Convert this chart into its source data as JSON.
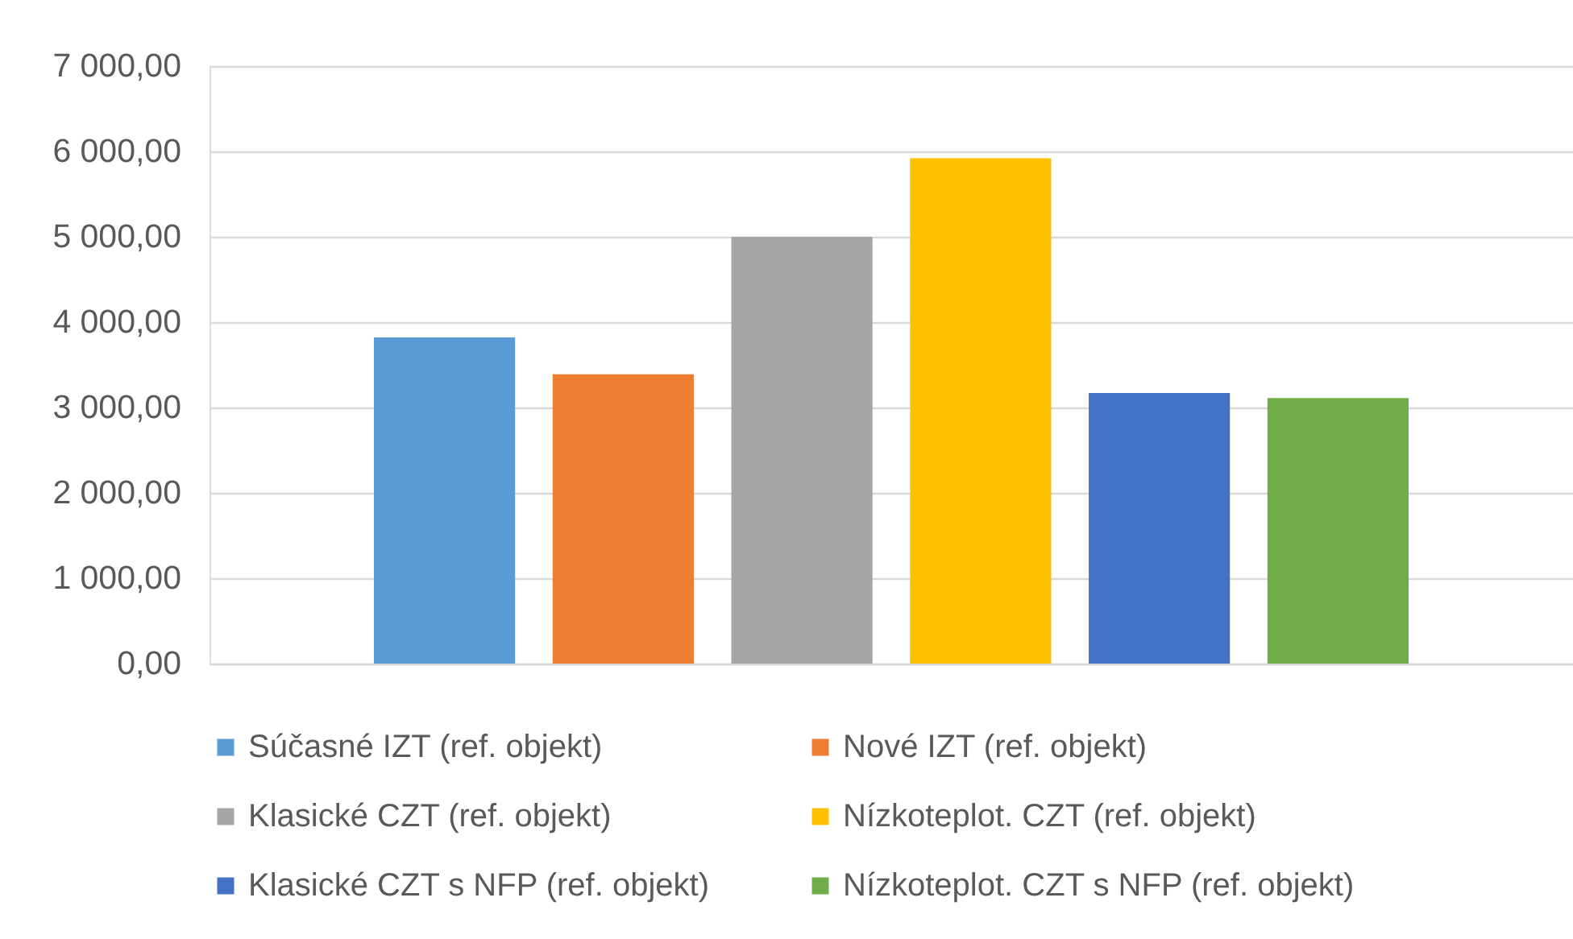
{
  "chart_data": {
    "type": "bar",
    "categories": [
      null
    ],
    "series": [
      {
        "name": "Súčasné IZT (ref. objekt)",
        "color": "#5b9bd5",
        "values": [
          3820
        ]
      },
      {
        "name": "Nové IZT (ref. objekt)",
        "color": "#ed7d31",
        "values": [
          3390
        ]
      },
      {
        "name": "Klasické CZT (ref. objekt)",
        "color": "#a5a5a5",
        "values": [
          5000
        ]
      },
      {
        "name": "Nízkoteplot. CZT (ref. objekt)",
        "color": "#ffc000",
        "values": [
          5920
        ]
      },
      {
        "name": "Klasické CZT s NFP (ref. objekt)",
        "color": "#4472c4",
        "values": [
          3170
        ]
      },
      {
        "name": "Nízkoteplot. CZT s NFP (ref. objekt)",
        "color": "#70ad47",
        "values": [
          3110
        ]
      }
    ],
    "ylim": [
      0,
      7000
    ],
    "yticks": [
      {
        "value": 0,
        "label": "0,00"
      },
      {
        "value": 1000,
        "label": "1 000,00"
      },
      {
        "value": 2000,
        "label": "2 000,00"
      },
      {
        "value": 3000,
        "label": "3 000,00"
      },
      {
        "value": 4000,
        "label": "4 000,00"
      },
      {
        "value": 5000,
        "label": "5 000,00"
      },
      {
        "value": 6000,
        "label": "6 000,00"
      },
      {
        "value": 7000,
        "label": "7 000,00"
      }
    ],
    "grid": "y",
    "legend": "bottom"
  }
}
